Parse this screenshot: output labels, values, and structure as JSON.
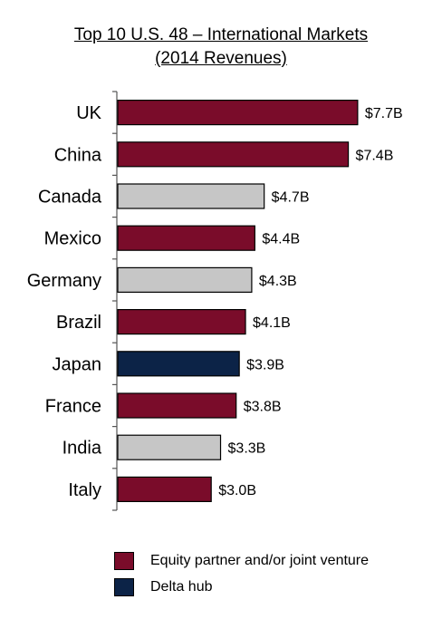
{
  "chart_data": {
    "type": "bar",
    "orientation": "horizontal",
    "title": "Top 10 U.S. 48 – International Markets",
    "subtitle": "(2014 Revenues)",
    "categories": [
      "UK",
      "China",
      "Canada",
      "Mexico",
      "Germany",
      "Brazil",
      "Japan",
      "France",
      "India",
      "Italy"
    ],
    "values": [
      7.7,
      7.4,
      4.7,
      4.4,
      4.3,
      4.1,
      3.9,
      3.8,
      3.3,
      3.0
    ],
    "value_labels": [
      "$7.7B",
      "$7.4B",
      "$4.7B",
      "$4.4B",
      "$4.3B",
      "$4.1B",
      "$3.9B",
      "$3.8B",
      "$3.3B",
      "$3.0B"
    ],
    "bar_types": [
      "equity",
      "equity",
      "other",
      "equity",
      "other",
      "equity",
      "hub",
      "equity",
      "other",
      "equity"
    ],
    "xlim": [
      0,
      9.0
    ],
    "grid": false,
    "legend_position": "bottom",
    "legend": [
      {
        "key": "equity",
        "label": "Equity partner and/or joint venture",
        "color": "#7a0c2a"
      },
      {
        "key": "hub",
        "label": "Delta hub",
        "color": "#0c2347"
      }
    ],
    "colors": {
      "equity": "#7a0c2a",
      "hub": "#0c2347",
      "other": "#c6c6c6"
    }
  }
}
